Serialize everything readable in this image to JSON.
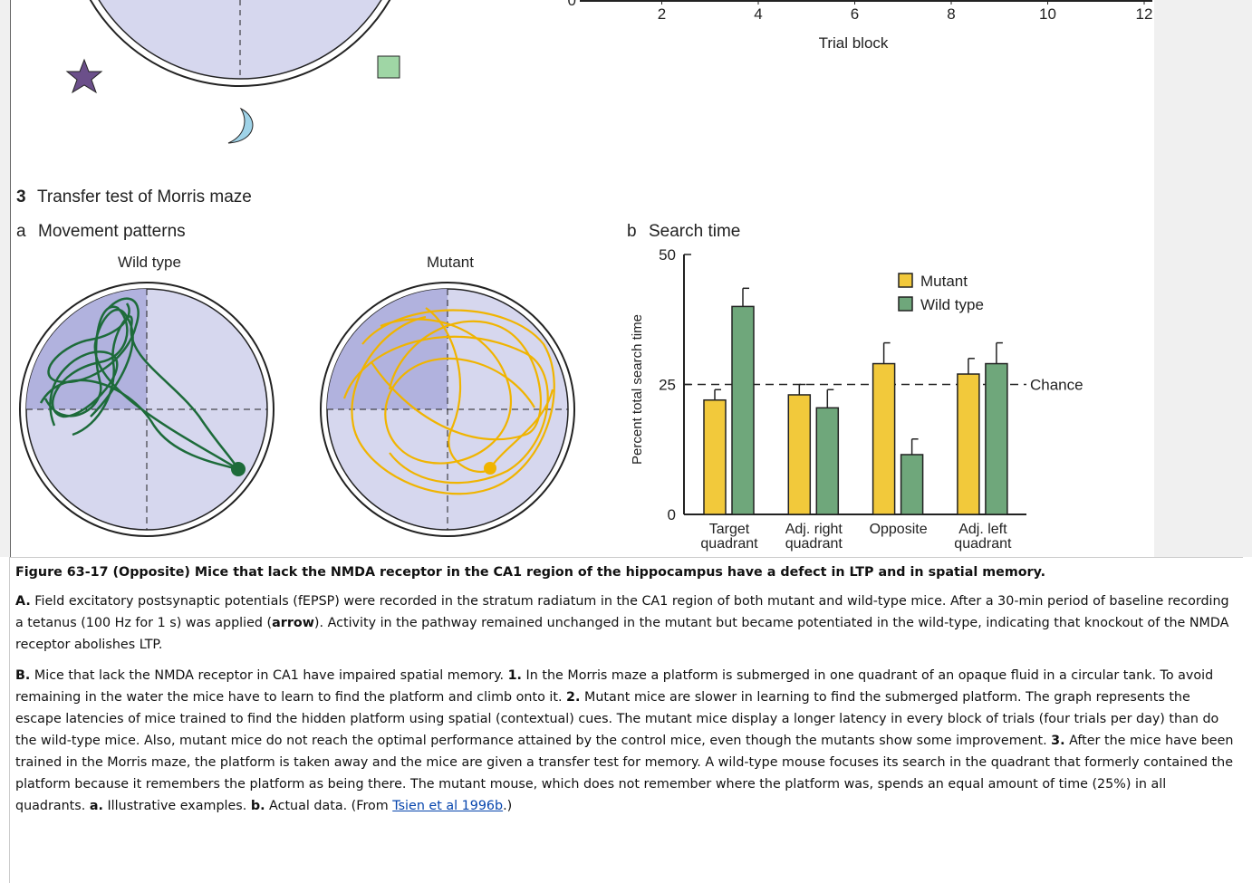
{
  "figure": {
    "panel_number": "3",
    "panel_title": "Transfer test of Morris maze",
    "a_letter": "a",
    "a_title": "Movement patterns",
    "maze_labels": [
      "Wild type",
      "Mutant"
    ]
  },
  "chart_data": [
    {
      "type": "axis",
      "xlabel": "Trial block",
      "xlim": [
        0,
        12
      ],
      "xticks": [
        2,
        4,
        6,
        8,
        10,
        12
      ],
      "yticks": [
        0
      ]
    },
    {
      "type": "bar",
      "panel_letter": "b",
      "title": "Search time",
      "ylabel": "Percent total search time",
      "categories": [
        "Target quadrant",
        "Adj. right quadrant",
        "Opposite",
        "Adj. left quadrant"
      ],
      "series": [
        {
          "name": "Mutant",
          "color": "#f2c93b",
          "values": [
            22,
            23,
            29,
            27
          ],
          "errors": [
            2,
            2,
            4,
            3
          ]
        },
        {
          "name": "Wild type",
          "color": "#6fa77b",
          "values": [
            40,
            20.5,
            11.5,
            29
          ],
          "errors": [
            3.5,
            3.5,
            3,
            4
          ]
        }
      ],
      "ylim": [
        0,
        50
      ],
      "yticks": [
        0,
        25,
        50
      ],
      "reference_line": {
        "value": 25,
        "label": "Chance"
      }
    }
  ],
  "caption": {
    "title": "Figure 63-17 (Opposite) Mice that lack the NMDA receptor in the CA1 region of the hippocampus have a defect in LTP and in spatial memory.",
    "paragraphs": [
      [
        {
          "text": "A.",
          "style": "bold"
        },
        {
          "text": " Field excitatory postsynaptic potentials (fEPSP) were recorded in the stratum radiatum in the CA1 region of both mutant and wild-type mice. After a 30-min period of baseline recording a tetanus (100 Hz for 1 s) was applied (",
          "style": "plain"
        },
        {
          "text": "arrow",
          "style": "bold"
        },
        {
          "text": "). Activity in the pathway remained unchanged in the mutant but became potentiated in the wild-type, indicating that knockout of the NMDA receptor abolishes LTP.",
          "style": "plain"
        }
      ],
      [
        {
          "text": "B.",
          "style": "bold"
        },
        {
          "text": " Mice that lack the NMDA receptor in CA1 have impaired spatial memory. ",
          "style": "plain"
        },
        {
          "text": "1.",
          "style": "bold"
        },
        {
          "text": " In the Morris maze a platform is submerged in one quadrant of an opaque fluid in a circular tank. To avoid remaining in the water the mice have to learn to find the platform and climb onto it. ",
          "style": "plain"
        },
        {
          "text": "2.",
          "style": "bold"
        },
        {
          "text": " Mutant mice are slower in learning to find the submerged platform. The graph represents the escape latencies of mice trained to find the hidden platform using spatial (contextual) cues. The mutant mice display a longer latency in every block of trials (four trials per day) than do the wild-type mice. Also, mutant mice do not reach the optimal performance attained by the control mice, even though the mutants show some improvement. ",
          "style": "plain"
        },
        {
          "text": "3.",
          "style": "bold"
        },
        {
          "text": " After the mice have been trained in the Morris maze, the platform is taken away and the mice are given a transfer test for memory. A wild-type mouse focuses its search in the quadrant that formerly contained the platform because it remembers the platform as being there. The mutant mouse, which does not remember where the platform was, spends an equal amount of time (25%) in all quadrants. ",
          "style": "plain"
        },
        {
          "text": "a.",
          "style": "bold"
        },
        {
          "text": " Illustrative examples. ",
          "style": "plain"
        },
        {
          "text": "b.",
          "style": "bold"
        },
        {
          "text": " Actual data. (From ",
          "style": "plain"
        },
        {
          "text": "Tsien et al 1996b",
          "style": "link"
        },
        {
          "text": ".)",
          "style": "plain"
        }
      ]
    ]
  }
}
